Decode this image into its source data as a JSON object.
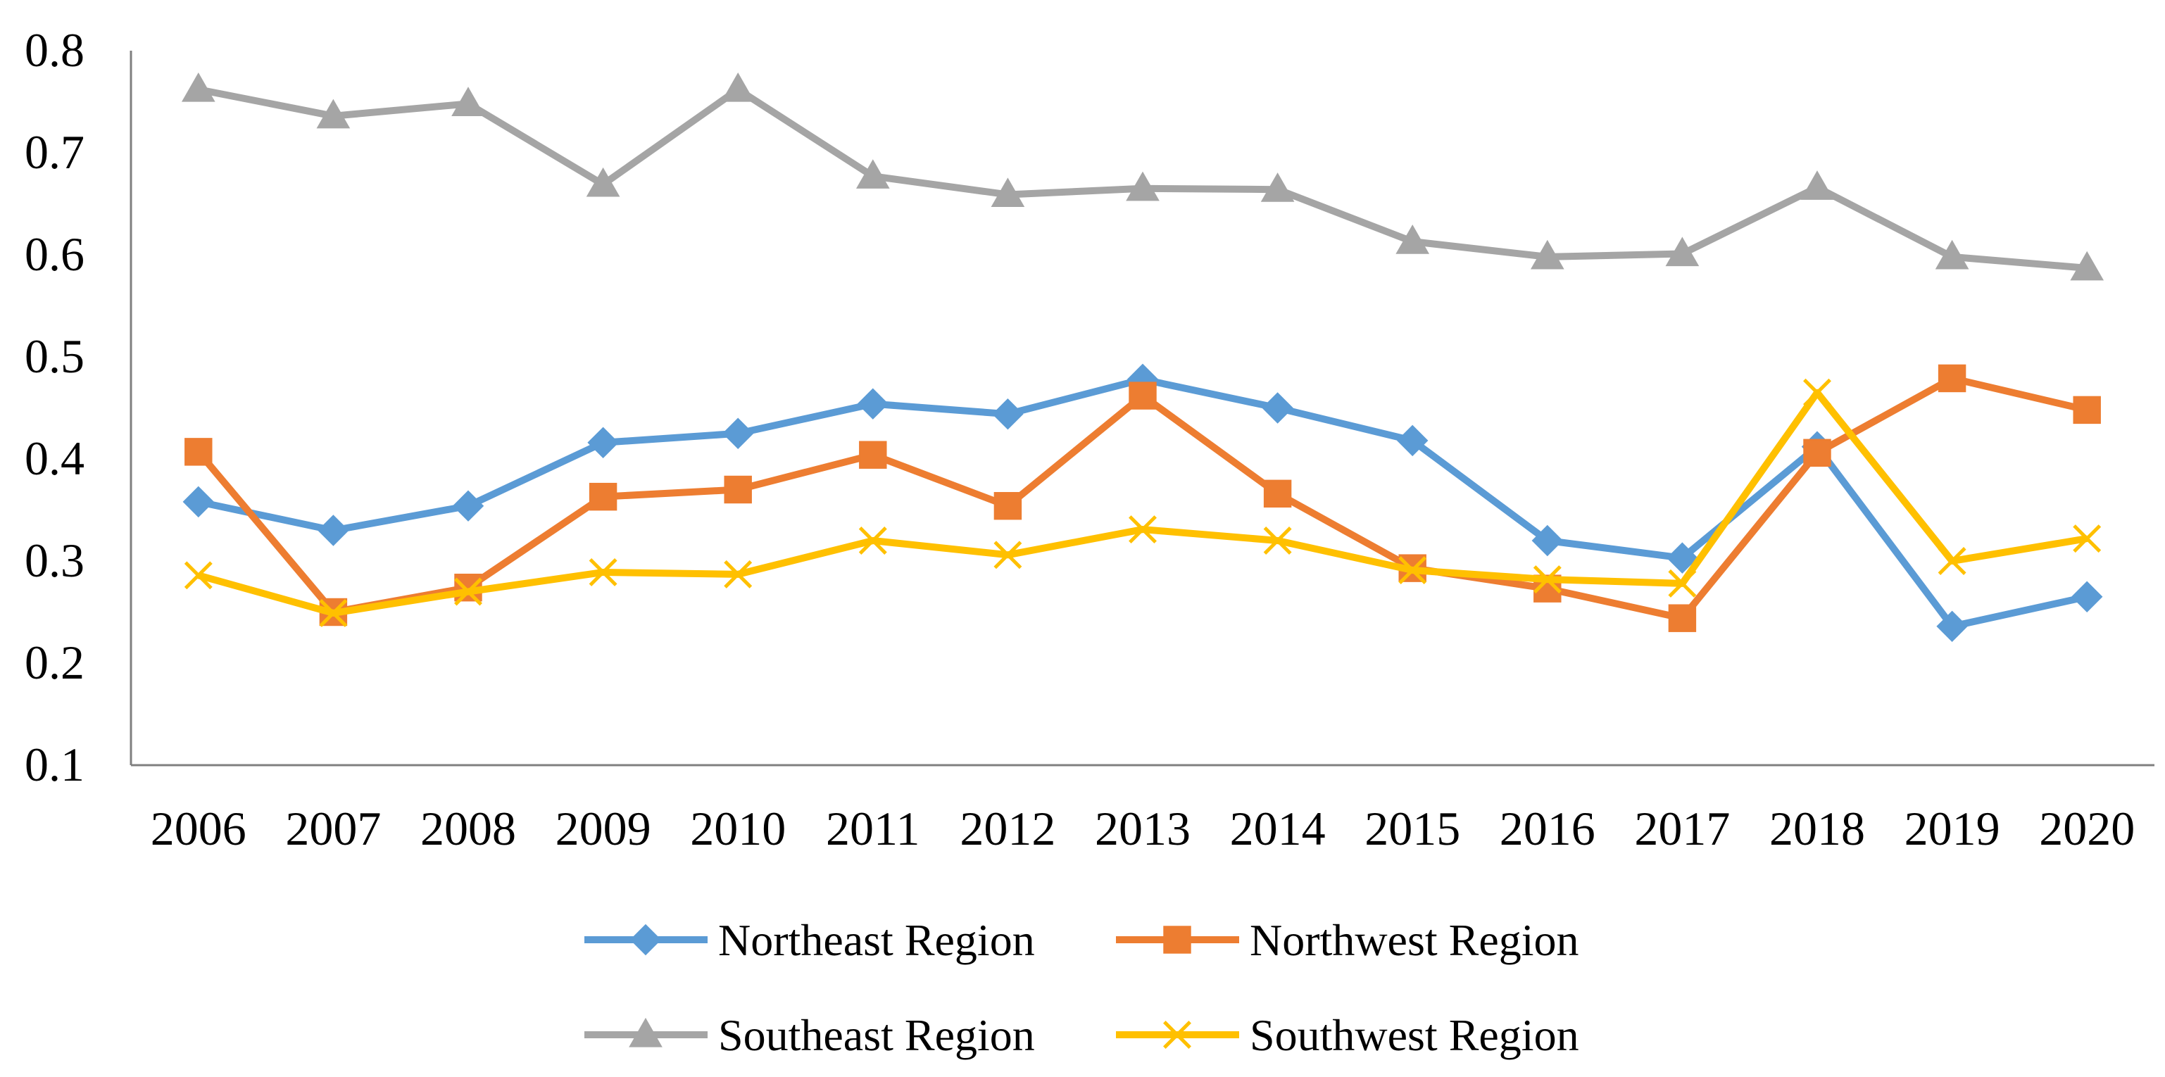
{
  "chart_data": {
    "type": "line",
    "title": "",
    "xlabel": "",
    "ylabel": "",
    "categories": [
      "2006",
      "2007",
      "2008",
      "2009",
      "2010",
      "2011",
      "2012",
      "2013",
      "2014",
      "2015",
      "2016",
      "2017",
      "2018",
      "2019",
      "2020"
    ],
    "ylim": [
      0.1,
      0.8
    ],
    "yticks": [
      0.1,
      0.2,
      0.3,
      0.4,
      0.5,
      0.6,
      0.7,
      0.8
    ],
    "ytick_labels": [
      "0.1",
      "0.2",
      "0.3",
      "0.4",
      "0.5",
      "0.6",
      "0.7",
      "0.8"
    ],
    "grid": false,
    "legend_position": "bottom",
    "series": [
      {
        "name": "Northeast Region",
        "color": "#5B9BD5",
        "marker": "diamond",
        "values": [
          0.358,
          0.33,
          0.354,
          0.416,
          0.425,
          0.454,
          0.444,
          0.478,
          0.45,
          0.418,
          0.32,
          0.303,
          0.412,
          0.236,
          0.265
        ]
      },
      {
        "name": "Northwest Region",
        "color": "#ED7D31",
        "marker": "square",
        "values": [
          0.407,
          0.25,
          0.274,
          0.363,
          0.37,
          0.404,
          0.354,
          0.462,
          0.366,
          0.293,
          0.273,
          0.244,
          0.406,
          0.479,
          0.448
        ]
      },
      {
        "name": "Southeast Region",
        "color": "#A5A5A5",
        "marker": "triangle",
        "values": [
          0.762,
          0.736,
          0.748,
          0.669,
          0.762,
          0.677,
          0.659,
          0.665,
          0.664,
          0.613,
          0.598,
          0.601,
          0.666,
          0.598,
          0.587
        ]
      },
      {
        "name": "Southwest Region",
        "color": "#FFC000",
        "marker": "x",
        "values": [
          0.286,
          0.249,
          0.27,
          0.289,
          0.287,
          0.32,
          0.306,
          0.331,
          0.32,
          0.291,
          0.282,
          0.278,
          0.465,
          0.3,
          0.322
        ]
      }
    ]
  }
}
